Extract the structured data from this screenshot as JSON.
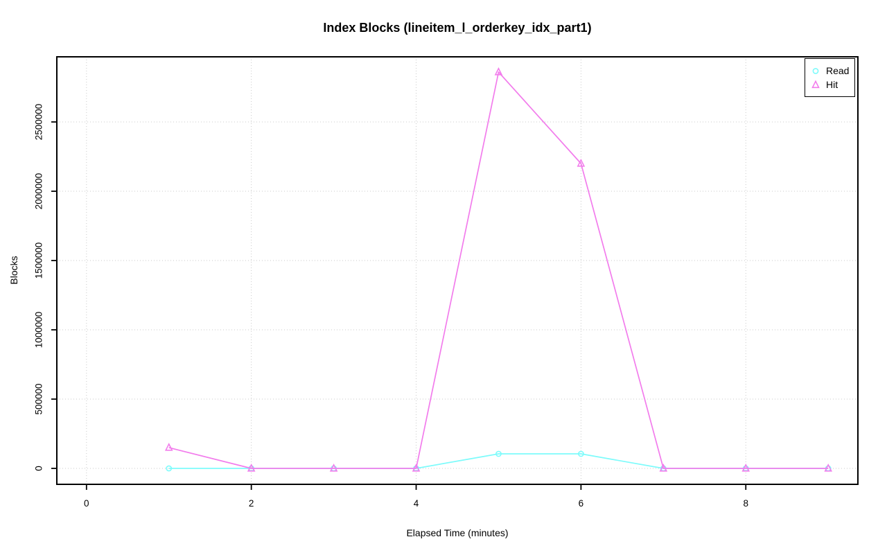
{
  "page": {
    "background": "#FFFFFF"
  },
  "chart_data": {
    "type": "line",
    "title": "Index Blocks (lineitem_l_orderkey_idx_part1)",
    "xlabel": "Elapsed Time (minutes)",
    "ylabel": "Blocks",
    "x": [
      1,
      2,
      3,
      4,
      5,
      6,
      7,
      8,
      9
    ],
    "series": [
      {
        "name": "Read",
        "color": "#7DFBFB",
        "marker": "circle",
        "values": [
          0,
          0,
          0,
          0,
          105000,
          105000,
          0,
          0,
          0
        ]
      },
      {
        "name": "Hit",
        "color": "#F27CEC",
        "marker": "triangle",
        "values": [
          150000,
          0,
          0,
          0,
          2860000,
          2200000,
          0,
          0,
          0
        ]
      }
    ],
    "xticks": [
      0,
      2,
      4,
      6,
      8
    ],
    "yticks": [
      0,
      500000,
      1000000,
      1500000,
      2000000,
      2500000
    ],
    "xlim": [
      -0.36,
      9.36
    ],
    "ylim": [
      -115000,
      2970000
    ],
    "grid": true,
    "grid_color": "#C9C9C9",
    "axis_color": "#000000",
    "text_color": "#000000",
    "legend_position": "top-right"
  }
}
